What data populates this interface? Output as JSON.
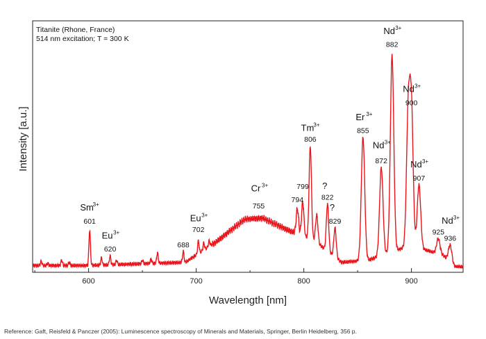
{
  "chart_data": {
    "type": "line",
    "title": "",
    "notes": [
      "Titanite (Rhone, France)",
      "514 nm excitation; T = 300 K"
    ],
    "xlabel": "Wavelength [nm]",
    "ylabel": "Intensity [a.u.]",
    "xlim": [
      548,
      948
    ],
    "ylim": [
      0,
      1.0
    ],
    "xticks": [
      600,
      700,
      800,
      900
    ],
    "grid": false,
    "legend": "none",
    "line_color": "#e8141a",
    "baseline": {
      "start": [
        548,
        0.025
      ],
      "points": [
        [
          600,
          0.025
        ],
        [
          690,
          0.04
        ],
        [
          720,
          0.14
        ],
        [
          745,
          0.24
        ],
        [
          762,
          0.245
        ],
        [
          785,
          0.19
        ],
        [
          810,
          0.14
        ],
        [
          835,
          0.04
        ],
        [
          860,
          0.05
        ],
        [
          900,
          0.12
        ],
        [
          930,
          0.07
        ],
        [
          940,
          0.02
        ],
        [
          948,
          0.02
        ]
      ]
    },
    "peaks": [
      {
        "x": 556,
        "y": 0.045
      },
      {
        "x": 562,
        "y": 0.035
      },
      {
        "x": 575,
        "y": 0.05
      },
      {
        "x": 582,
        "y": 0.04
      },
      {
        "x": 601,
        "y": 0.19
      },
      {
        "x": 612,
        "y": 0.06
      },
      {
        "x": 620,
        "y": 0.07
      },
      {
        "x": 626,
        "y": 0.05
      },
      {
        "x": 650,
        "y": 0.05
      },
      {
        "x": 658,
        "y": 0.055
      },
      {
        "x": 664,
        "y": 0.085
      },
      {
        "x": 688,
        "y": 0.09
      },
      {
        "x": 702,
        "y": 0.14
      },
      {
        "x": 707,
        "y": 0.13
      },
      {
        "x": 712,
        "y": 0.14
      },
      {
        "x": 794,
        "y": 0.29
      },
      {
        "x": 799,
        "y": 0.32
      },
      {
        "x": 806,
        "y": 0.58
      },
      {
        "x": 812,
        "y": 0.26
      },
      {
        "x": 822,
        "y": 0.31
      },
      {
        "x": 829,
        "y": 0.2
      },
      {
        "x": 855,
        "y": 0.62
      },
      {
        "x": 872,
        "y": 0.48
      },
      {
        "x": 882,
        "y": 1.0
      },
      {
        "x": 897,
        "y": 0.72
      },
      {
        "x": 900,
        "y": 0.74
      },
      {
        "x": 907,
        "y": 0.4
      },
      {
        "x": 925,
        "y": 0.15
      },
      {
        "x": 936,
        "y": 0.12
      }
    ],
    "annotations": [
      {
        "ion": "Sm",
        "charge": "3+",
        "x": 601,
        "ion_y": 0.28,
        "wl": "601",
        "wl_y": 0.22
      },
      {
        "ion": "Eu",
        "charge": "3+",
        "x": 620,
        "ion_y": 0.15,
        "wl": "620",
        "wl_y": 0.09
      },
      {
        "ion": "",
        "charge": "",
        "x": 688,
        "ion_y": 0,
        "wl": "688",
        "wl_y": 0.11
      },
      {
        "ion": "Eu",
        "charge": "3+",
        "x": 702,
        "ion_y": 0.23,
        "wl": "702",
        "wl_y": 0.18
      },
      {
        "ion": "Cr",
        "charge": "3+",
        "x": 758,
        "ion_y": 0.37,
        "wl": "755",
        "wl_y": 0.29
      },
      {
        "ion": "",
        "charge": "",
        "x": 794,
        "ion_y": 0,
        "wl": "794",
        "wl_y": 0.32
      },
      {
        "ion": "",
        "charge": "",
        "x": 799,
        "ion_y": 0,
        "wl": "799",
        "wl_y": 0.38
      },
      {
        "ion": "Tm",
        "charge": "3+",
        "x": 806,
        "ion_y": 0.65,
        "wl": "806",
        "wl_y": 0.6
      },
      {
        "ion": "?",
        "charge": "",
        "x": 822,
        "ion_y": 0.38,
        "wl": "822",
        "wl_y": 0.33
      },
      {
        "ion": "?",
        "charge": "",
        "x": 829,
        "ion_y": 0.28,
        "wl": "829",
        "wl_y": 0.22
      },
      {
        "ion": "Er",
        "charge": "3+",
        "x": 855,
        "ion_y": 0.7,
        "wl": "855",
        "wl_y": 0.64
      },
      {
        "ion": "Nd",
        "charge": "3+",
        "x": 872,
        "ion_y": 0.57,
        "wl": "872",
        "wl_y": 0.5
      },
      {
        "ion": "Nd",
        "charge": "3+",
        "x": 882,
        "ion_y": 1.1,
        "wl": "882",
        "wl_y": 1.04
      },
      {
        "ion": "Nd",
        "charge": "3+",
        "x": 900,
        "ion_y": 0.83,
        "wl": "900",
        "wl_y": 0.77
      },
      {
        "ion": "Nd",
        "charge": "3+",
        "x": 907,
        "ion_y": 0.48,
        "wl": "907",
        "wl_y": 0.42
      },
      {
        "ion": "",
        "charge": "",
        "x": 925,
        "ion_y": 0,
        "wl": "925",
        "wl_y": 0.17
      },
      {
        "ion": "Nd",
        "charge": "3+",
        "x": 936,
        "ion_y": 0.22,
        "wl": "936",
        "wl_y": 0.14
      }
    ]
  },
  "reference": "Reference: Gaft, Reisfeld & Panczer (2005): Luminescence spectroscopy of Minerals and Materials, Springer, Berlin Heidelberg, 356 p."
}
